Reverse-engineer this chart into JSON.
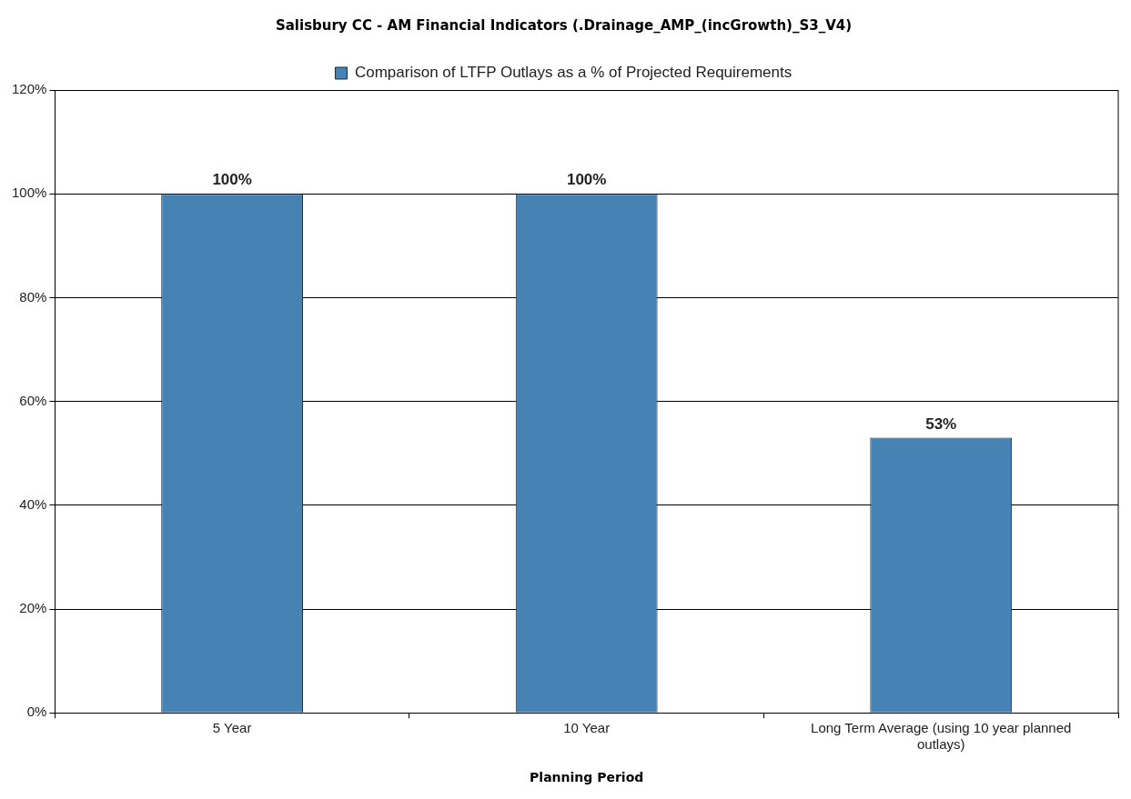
{
  "chart_data": {
    "type": "bar",
    "title": "Salisbury CC - AM Financial Indicators (.Drainage_AMP_(incGrowth)_S3_V4)",
    "xlabel": "Planning Period",
    "categories": [
      "5 Year",
      "10 Year",
      "Long Term Average (using 10 year planned outlays)"
    ],
    "series": [
      {
        "name": "Comparison of LTFP Outlays as a % of Projected Requirements",
        "color": "#4682b4",
        "values": [
          100,
          100,
          53
        ],
        "value_labels": [
          "100%",
          "100%",
          "53%"
        ]
      }
    ],
    "ylim": [
      0,
      120
    ],
    "yticks": [
      {
        "value": 0,
        "label": "0%"
      },
      {
        "value": 20,
        "label": "20%"
      },
      {
        "value": 40,
        "label": "40%"
      },
      {
        "value": 60,
        "label": "60%"
      },
      {
        "value": 80,
        "label": "80%"
      },
      {
        "value": 100,
        "label": "100%"
      },
      {
        "value": 120,
        "label": "120%"
      }
    ],
    "grid": "y",
    "legend": "top"
  }
}
